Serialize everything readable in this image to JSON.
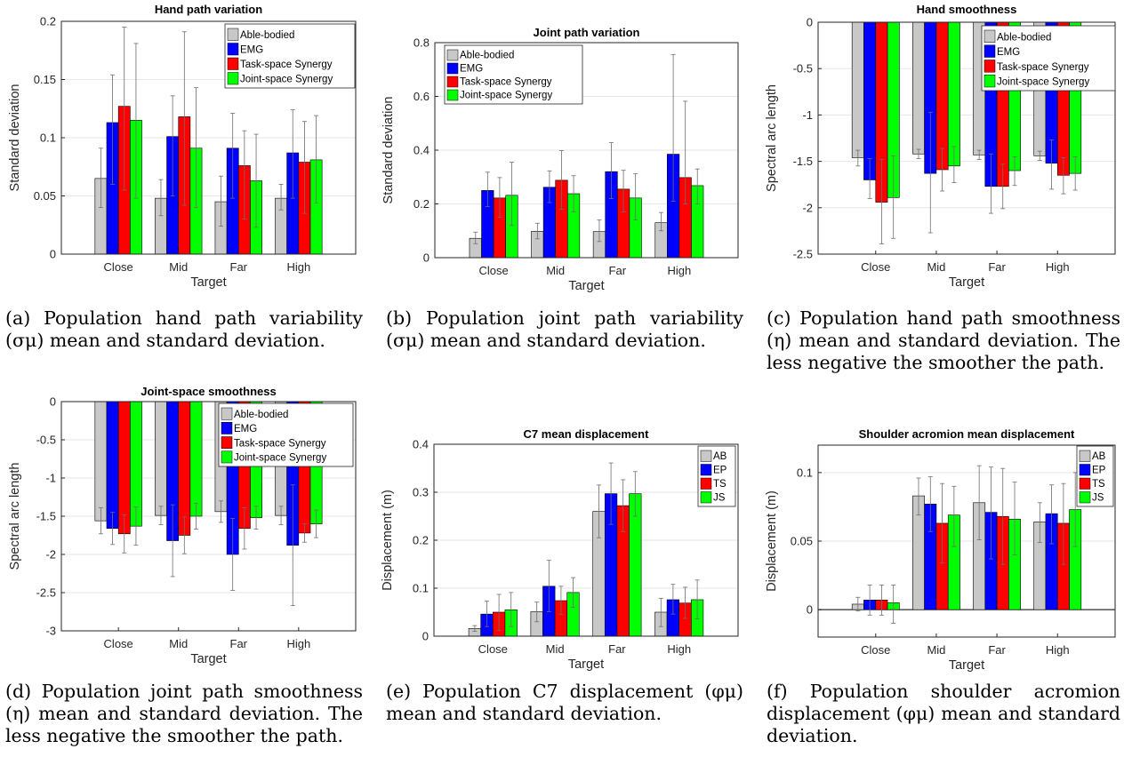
{
  "colors": {
    "series": [
      "#c8c8c8",
      "#0000ff",
      "#ff0000",
      "#00ff00"
    ],
    "axis": "#262626",
    "grid": "#e6e6e6"
  },
  "captions": {
    "a": "(a) Population hand path variability (σμ) mean and standard deviation.",
    "b": "(b) Population joint path variability (σμ) mean and standard deviation.",
    "c": "(c) Population hand path smoothness (η) mean and standard deviation. The less negative the smoother the path.",
    "d": "(d) Population joint path smoothness (η) mean and standard deviation. The less negative the smoother the path.",
    "e": "(e) Population C7 displacement (φμ) mean and standard deviation.",
    "f": "(f) Population shoulder acromion displacement (φμ) mean and standard deviation."
  },
  "chart_data": [
    {
      "id": "a",
      "type": "bar",
      "title": "Hand path variation",
      "xlabel": "Target",
      "ylabel": "Standard deviation",
      "categories": [
        "Close",
        "Mid",
        "Far",
        "High"
      ],
      "ylim": [
        0,
        0.2
      ],
      "yticks": [
        0,
        0.05,
        0.1,
        0.15,
        0.2
      ],
      "ytick_labels": [
        "0",
        "0.05",
        "0.1",
        "0.15",
        "0.2"
      ],
      "legend_position": "top-right",
      "series": [
        {
          "name": "Able-bodied",
          "values": [
            0.065,
            0.048,
            0.045,
            0.048
          ],
          "err_low": [
            0.04,
            0.033,
            0.024,
            0.038
          ],
          "err_high": [
            0.091,
            0.064,
            0.067,
            0.06
          ]
        },
        {
          "name": "EMG",
          "values": [
            0.113,
            0.101,
            0.091,
            0.087
          ],
          "err_low": [
            0.06,
            0.05,
            0.048,
            0.048
          ],
          "err_high": [
            0.154,
            0.136,
            0.121,
            0.124
          ]
        },
        {
          "name": "Task-space Synergy",
          "values": [
            0.127,
            0.118,
            0.076,
            0.079
          ],
          "err_low": [
            0.055,
            0.042,
            0.03,
            0.035
          ],
          "err_high": [
            0.195,
            0.191,
            0.106,
            0.114
          ]
        },
        {
          "name": "Joint-space Synergy",
          "values": [
            0.115,
            0.091,
            0.063,
            0.081
          ],
          "err_low": [
            0.048,
            0.04,
            0.023,
            0.044
          ],
          "err_high": [
            0.181,
            0.143,
            0.103,
            0.119
          ]
        }
      ]
    },
    {
      "id": "b",
      "type": "bar",
      "title": "Joint path variation",
      "xlabel": "Target",
      "ylabel": "Standard deviation",
      "categories": [
        "Close",
        "Mid",
        "Far",
        "High"
      ],
      "ylim": [
        0,
        0.8
      ],
      "yticks": [
        0,
        0.2,
        0.4,
        0.6,
        0.8
      ],
      "ytick_labels": [
        "0",
        "0.2",
        "0.4",
        "0.6",
        "0.8"
      ],
      "legend_position": "top-left",
      "series": [
        {
          "name": "Able-bodied",
          "values": [
            0.072,
            0.098,
            0.097,
            0.13
          ],
          "err_low": [
            0.052,
            0.07,
            0.06,
            0.1
          ],
          "err_high": [
            0.095,
            0.128,
            0.14,
            0.168
          ]
        },
        {
          "name": "EMG",
          "values": [
            0.25,
            0.262,
            0.32,
            0.385
          ],
          "err_low": [
            0.19,
            0.205,
            0.22,
            0.21
          ],
          "err_high": [
            0.318,
            0.323,
            0.428,
            0.756
          ]
        },
        {
          "name": "Task-space Synergy",
          "values": [
            0.222,
            0.288,
            0.255,
            0.298
          ],
          "err_low": [
            0.15,
            0.18,
            0.17,
            0.2
          ],
          "err_high": [
            0.298,
            0.398,
            0.325,
            0.582
          ]
        },
        {
          "name": "Joint-space Synergy",
          "values": [
            0.232,
            0.238,
            0.222,
            0.268
          ],
          "err_low": [
            0.12,
            0.17,
            0.14,
            0.2
          ],
          "err_high": [
            0.355,
            0.305,
            0.312,
            0.33
          ]
        }
      ]
    },
    {
      "id": "c",
      "type": "bar",
      "title": "Hand smoothness",
      "xlabel": "Target",
      "ylabel": "Spectral arc length",
      "categories": [
        "Close",
        "Mid",
        "Far",
        "High"
      ],
      "ylim": [
        -2.5,
        0
      ],
      "yticks": [
        -2.5,
        -2,
        -1.5,
        -1,
        -0.5,
        0
      ],
      "ytick_labels": [
        "-2.5",
        "-2",
        "-1.5",
        "-1",
        "-0.5",
        "0"
      ],
      "legend_position": "top-right",
      "series": [
        {
          "name": "Able-bodied",
          "values": [
            -1.46,
            -1.42,
            -1.43,
            -1.44
          ],
          "err_low": [
            -1.55,
            -1.47,
            -1.48,
            -1.49
          ],
          "err_high": [
            -1.38,
            -1.37,
            -1.38,
            -1.39
          ]
        },
        {
          "name": "EMG",
          "values": [
            -1.7,
            -1.63,
            -1.77,
            -1.52
          ],
          "err_low": [
            -1.9,
            -2.27,
            -2.06,
            -1.8
          ],
          "err_high": [
            -1.47,
            -0.97,
            -1.42,
            -1.27
          ]
        },
        {
          "name": "Task-space Synergy",
          "values": [
            -1.94,
            -1.59,
            -1.77,
            -1.65
          ],
          "err_low": [
            -2.39,
            -1.82,
            -2.01,
            -1.85
          ],
          "err_high": [
            -1.48,
            -1.36,
            -1.53,
            -1.46
          ]
        },
        {
          "name": "Joint-space Synergy",
          "values": [
            -1.89,
            -1.55,
            -1.6,
            -1.63
          ],
          "err_low": [
            -2.33,
            -1.73,
            -1.76,
            -1.81
          ],
          "err_high": [
            -1.44,
            -1.34,
            -1.45,
            -1.45
          ]
        }
      ]
    },
    {
      "id": "d",
      "type": "bar",
      "title": "Joint-space smoothness",
      "xlabel": "Target",
      "ylabel": "Spectral arc length",
      "categories": [
        "Close",
        "Mid",
        "Far",
        "High"
      ],
      "ylim": [
        -3,
        0
      ],
      "yticks": [
        -3,
        -2.5,
        -2,
        -1.5,
        -1,
        -0.5,
        0
      ],
      "ytick_labels": [
        "-3",
        "-2.5",
        "-2",
        "-1.5",
        "-1",
        "-0.5",
        "0"
      ],
      "legend_position": "top-right",
      "series": [
        {
          "name": "Able-bodied",
          "values": [
            -1.56,
            -1.49,
            -1.44,
            -1.49
          ],
          "err_low": [
            -1.73,
            -1.61,
            -1.58,
            -1.61
          ],
          "err_high": [
            -1.39,
            -1.37,
            -1.3,
            -1.37
          ]
        },
        {
          "name": "EMG",
          "values": [
            -1.66,
            -1.82,
            -2.0,
            -1.88
          ],
          "err_low": [
            -1.87,
            -2.29,
            -2.47,
            -2.67
          ],
          "err_high": [
            -1.45,
            -1.35,
            -1.53,
            -1.09
          ]
        },
        {
          "name": "Task-space Synergy",
          "values": [
            -1.73,
            -1.75,
            -1.66,
            -1.72
          ],
          "err_low": [
            -1.98,
            -1.99,
            -1.93,
            -1.84
          ],
          "err_high": [
            -1.48,
            -1.51,
            -1.39,
            -1.6
          ]
        },
        {
          "name": "Joint-space Synergy",
          "values": [
            -1.63,
            -1.5,
            -1.52,
            -1.6
          ],
          "err_low": [
            -1.88,
            -1.67,
            -1.67,
            -1.78
          ],
          "err_high": [
            -1.38,
            -1.33,
            -1.37,
            -1.42
          ]
        }
      ]
    },
    {
      "id": "e",
      "type": "bar",
      "title": "C7 mean displacement",
      "xlabel": "Target",
      "ylabel": "Displacement (m)",
      "categories": [
        "Close",
        "Mid",
        "Far",
        "High"
      ],
      "ylim": [
        0,
        0.4
      ],
      "yticks": [
        0,
        0.1,
        0.2,
        0.3,
        0.4
      ],
      "ytick_labels": [
        "0",
        "0.1",
        "0.2",
        "0.3",
        "0.4"
      ],
      "legend_position": "top-right",
      "series": [
        {
          "name": "AB",
          "values": [
            0.016,
            0.051,
            0.26,
            0.05
          ],
          "err_low": [
            0.01,
            0.03,
            0.205,
            0.02
          ],
          "err_high": [
            0.022,
            0.071,
            0.315,
            0.079
          ]
        },
        {
          "name": "EP",
          "values": [
            0.046,
            0.104,
            0.297,
            0.076
          ],
          "err_low": [
            0.02,
            0.051,
            0.233,
            0.046
          ],
          "err_high": [
            0.073,
            0.158,
            0.361,
            0.108
          ]
        },
        {
          "name": "TS",
          "values": [
            0.05,
            0.074,
            0.272,
            0.069
          ],
          "err_low": [
            0.012,
            0.045,
            0.218,
            0.037
          ],
          "err_high": [
            0.087,
            0.104,
            0.326,
            0.102
          ]
        },
        {
          "name": "JS",
          "values": [
            0.055,
            0.091,
            0.297,
            0.076
          ],
          "err_low": [
            0.02,
            0.06,
            0.25,
            0.036
          ],
          "err_high": [
            0.091,
            0.122,
            0.343,
            0.117
          ]
        }
      ]
    },
    {
      "id": "f",
      "type": "bar",
      "title": "Shoulder acromion mean displacement",
      "xlabel": "Target",
      "ylabel": "Displacement (m)",
      "categories": [
        "Close",
        "Mid",
        "Far",
        "High"
      ],
      "ylim": [
        -0.02,
        0.12
      ],
      "yticks": [
        0,
        0.05,
        0.1
      ],
      "ytick_labels": [
        "0",
        "0.05",
        "0.1"
      ],
      "legend_position": "top-right",
      "series": [
        {
          "name": "AB",
          "values": [
            0.004,
            0.083,
            0.078,
            0.064
          ],
          "err_low": [
            -0.001,
            0.069,
            0.051,
            0.049
          ],
          "err_high": [
            0.009,
            0.096,
            0.105,
            0.078
          ]
        },
        {
          "name": "EP",
          "values": [
            0.007,
            0.077,
            0.071,
            0.07
          ],
          "err_low": [
            -0.004,
            0.057,
            0.037,
            0.048
          ],
          "err_high": [
            0.018,
            0.097,
            0.104,
            0.091
          ]
        },
        {
          "name": "TS",
          "values": [
            0.007,
            0.063,
            0.068,
            0.063
          ],
          "err_low": [
            -0.004,
            0.034,
            0.033,
            0.033
          ],
          "err_high": [
            0.018,
            0.092,
            0.103,
            0.092
          ]
        },
        {
          "name": "JS",
          "values": [
            0.005,
            0.069,
            0.066,
            0.073
          ],
          "err_low": [
            -0.01,
            0.046,
            0.04,
            0.046
          ],
          "err_high": [
            0.018,
            0.09,
            0.093,
            0.1
          ]
        }
      ]
    }
  ]
}
